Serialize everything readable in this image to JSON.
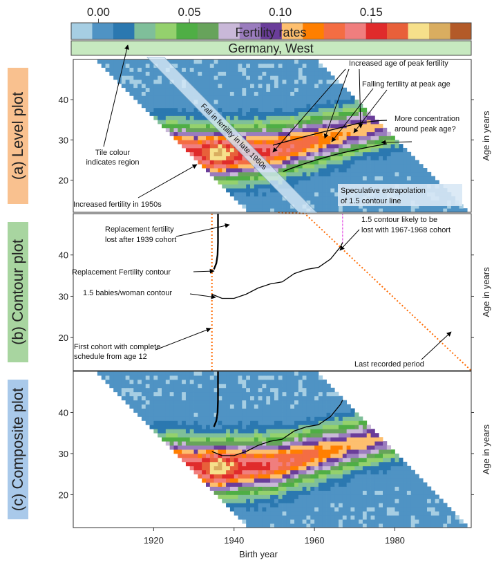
{
  "chart_data": {
    "type": "heatmap",
    "title": "Germany, West",
    "xlabel": "Birth year",
    "ylabel": "Age in years",
    "colorbar": {
      "label": "Fertility rates",
      "ticks": [
        "0.00",
        "0.05",
        "0.10",
        "0.15"
      ],
      "tick_values": [
        0.0,
        0.05,
        0.1,
        0.15
      ],
      "range": [
        -0.015,
        0.205
      ],
      "colors": [
        "#a6cee3",
        "#4f93c4",
        "#2b78b0",
        "#7fbf9a",
        "#94d16d",
        "#4fae45",
        "#67a35b",
        "#c9b8d8",
        "#9a7cbe",
        "#6a3d9a",
        "#fdbf6f",
        "#ff7f00",
        "#f46d43",
        "#f07e7e",
        "#e02b2b",
        "#e8603a",
        "#f6e08b",
        "#d9ad60",
        "#b35a28"
      ]
    },
    "x_ticks": [
      "1920",
      "1940",
      "1960",
      "1980"
    ],
    "x_tick_values": [
      1920,
      1940,
      1960,
      1980
    ],
    "xlim": [
      1900,
      1999
    ],
    "ylim": [
      12,
      50
    ],
    "y_ticks": [
      "20",
      "30",
      "40"
    ],
    "y_tick_values": [
      20,
      30,
      40
    ],
    "panels": [
      {
        "label": "(a) Level plot",
        "kind": "level",
        "color": "#f9c18f"
      },
      {
        "label": "(b) Contour plot",
        "kind": "contour",
        "color": "#a8d5a0"
      },
      {
        "label": "(c) Composite plot",
        "kind": "composite",
        "color": "#a9c9ea"
      }
    ],
    "period_range": [
      1955,
      2009
    ],
    "age_range": [
      12,
      49
    ],
    "contours": [
      {
        "name": "Replacement Fertility contour",
        "points": [
          [
            1935,
            36.5
          ],
          [
            1935.6,
            38
          ],
          [
            1935.9,
            40
          ],
          [
            1936,
            43
          ],
          [
            1936,
            46
          ],
          [
            1936,
            50
          ]
        ]
      },
      {
        "name": "1.5 babies/woman contour",
        "points": [
          [
            1934.5,
            30.5
          ],
          [
            1937,
            29.5
          ],
          [
            1940,
            29.5
          ],
          [
            1943,
            30.5
          ],
          [
            1946,
            32
          ],
          [
            1949,
            33
          ],
          [
            1952,
            33.5
          ],
          [
            1955,
            35.5
          ],
          [
            1958,
            36.5
          ],
          [
            1961,
            37
          ],
          [
            1964,
            39
          ],
          [
            1966.5,
            42
          ],
          [
            1967,
            43
          ]
        ]
      }
    ],
    "level_annotations": [
      "Increased age of peak fertility",
      "Falling fertility at peak age",
      "More concentration",
      "around peak age?",
      "Tile colour",
      "indicates region",
      "Increased fertility in 1950s",
      "Fall in fertility in late 1960s",
      "Speculative extrapolation",
      "of 1.5 contour line"
    ],
    "contour_annotations": [
      "Replacement fertility",
      "lost after 1939 cohort",
      "1.5 contour likely to be",
      "lost with 1967-1968 cohort",
      "Replacement Fertility contour",
      "1.5 babies/woman contour",
      "First cohort with complete",
      "schedule from age 12",
      "Last recorded period"
    ]
  }
}
